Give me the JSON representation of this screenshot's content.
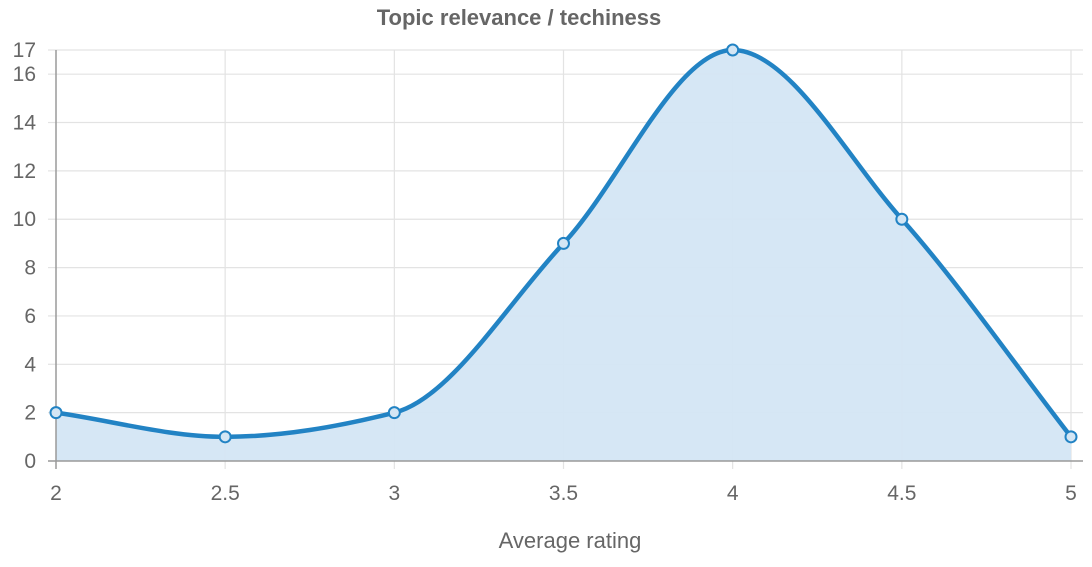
{
  "chart_data": {
    "type": "area",
    "title": "Topic relevance / techiness",
    "xlabel": "Average rating",
    "ylabel": "",
    "x": [
      2,
      2.5,
      3,
      3.5,
      4,
      4.5,
      5
    ],
    "series": [
      {
        "values": [
          2,
          1,
          2,
          9,
          17,
          10,
          1
        ],
        "color": "#2283c4",
        "fill": "#d4e6f4"
      }
    ],
    "xlim": [
      2,
      5
    ],
    "ylim": [
      0,
      17
    ],
    "x_ticks": [
      "2",
      "2.5",
      "3",
      "3.5",
      "4",
      "4.5",
      "5"
    ],
    "y_ticks": [
      "0",
      "2",
      "4",
      "6",
      "8",
      "10",
      "12",
      "14",
      "16",
      "17"
    ],
    "grid": true,
    "smooth": true
  }
}
